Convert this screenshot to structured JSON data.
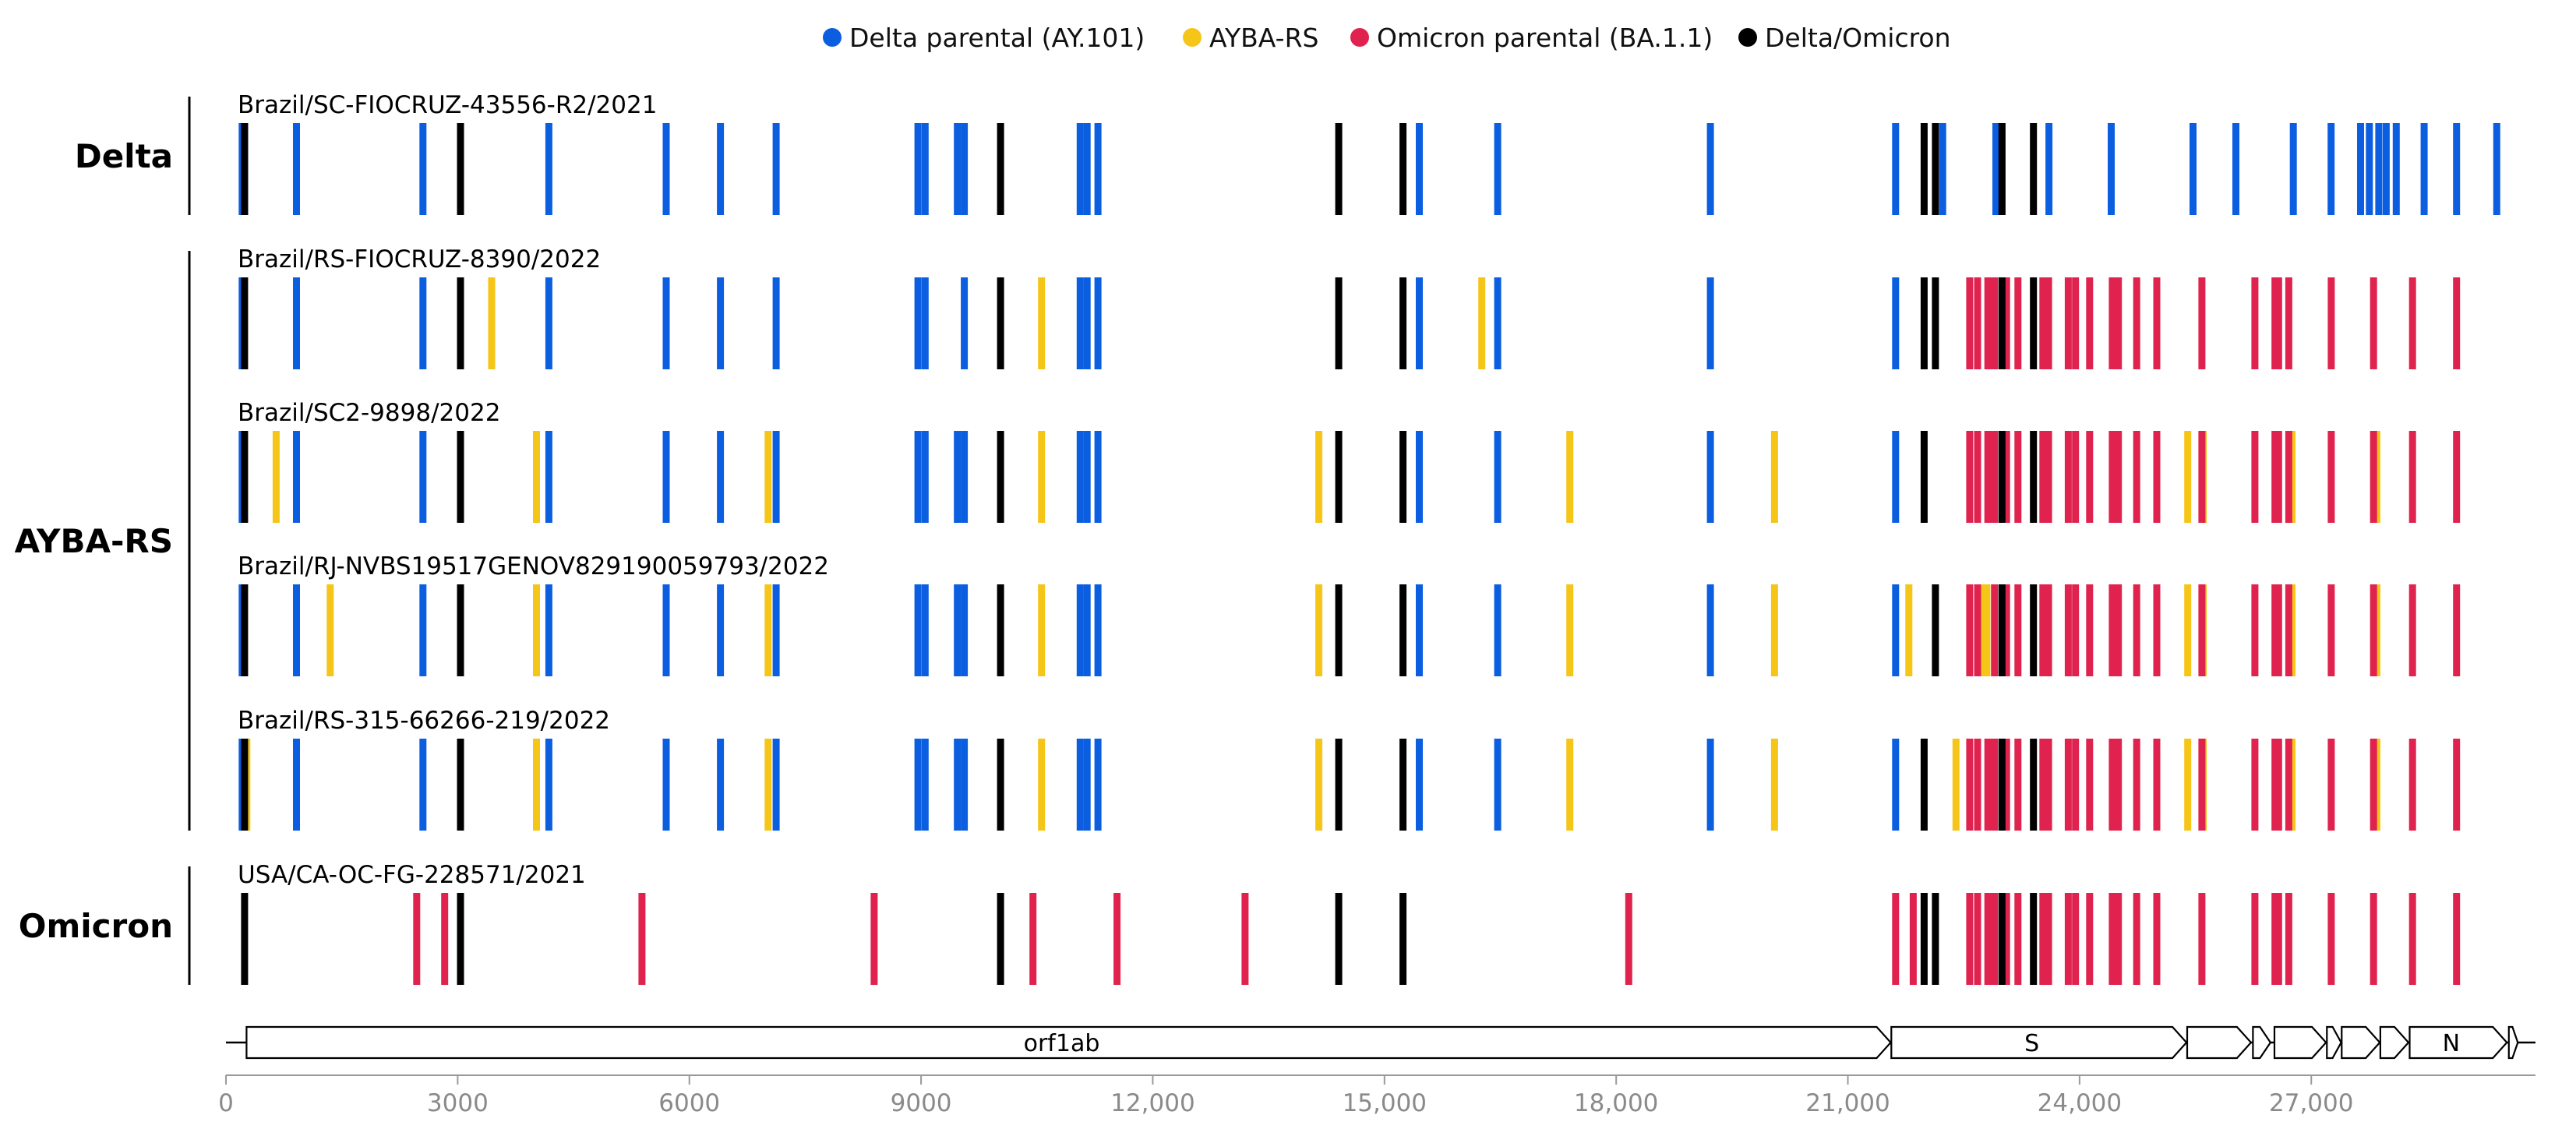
{
  "chart_data": {
    "type": "mutation_map",
    "title": "",
    "xlabel": "",
    "ylabel": "",
    "xlim": [
      0,
      29903
    ],
    "xticks": [
      0,
      3000,
      6000,
      9000,
      12000,
      15000,
      18000,
      21000,
      24000,
      27000
    ],
    "xtick_labels": [
      "0",
      "3000",
      "6000",
      "9000",
      "12,000",
      "15,000",
      "18,000",
      "21,000",
      "24,000",
      "27,000"
    ],
    "legend": {
      "placement": "top-center",
      "entries": [
        {
          "key": "delta",
          "label": "Delta parental (AY.101)",
          "color": "#0b5ee0"
        },
        {
          "key": "ayba",
          "label": "AYBA-RS",
          "color": "#f5c518"
        },
        {
          "key": "omicron",
          "label": "Omicron parental (BA.1.1)",
          "color": "#e0234e"
        },
        {
          "key": "both",
          "label": "Delta/Omicron",
          "color": "#000000"
        }
      ]
    },
    "groups": [
      {
        "label": "Delta",
        "tracks": [
          0
        ]
      },
      {
        "label": "AYBA-RS",
        "tracks": [
          1,
          2,
          3,
          4
        ]
      },
      {
        "label": "Omicron",
        "tracks": [
          5
        ]
      }
    ],
    "tracks": [
      {
        "name": "Brazil/SC-FIOCRUZ-43556-R2/2021",
        "mutations": {
          "delta": [
            210,
            241,
            913,
            2550,
            4181,
            5700,
            6402,
            7124,
            8960,
            9053,
            9470,
            9560,
            11060,
            11150,
            11290,
            15451,
            16466,
            19220,
            21618,
            22227,
            22917,
            22995,
            23604,
            24410,
            25469,
            26024,
            26767,
            27257,
            27638,
            27752,
            27874,
            27970,
            28100,
            28461,
            28881,
            29402
          ],
          "ayba": [],
          "omicron": [],
          "both": [
            241,
            3037,
            10029,
            14408,
            15240,
            21987,
            22134,
            22995,
            23403
          ]
        }
      },
      {
        "name": "Brazil/RS-FIOCRUZ-8390/2022",
        "mutations": {
          "delta": [
            210,
            913,
            2550,
            4181,
            5700,
            6402,
            7124,
            8960,
            9053,
            9560,
            11060,
            11150,
            11290,
            15451,
            16466,
            19220,
            21618
          ],
          "ayba": [
            3440,
            10560,
            16260
          ],
          "omicron": [
            22578,
            22679,
            22813,
            22898,
            23055,
            23202,
            23525,
            23599,
            23854,
            23948,
            24130,
            24424,
            24503,
            24740,
            25000,
            25584,
            26270,
            26530,
            26577,
            26709,
            27259,
            27807,
            28311,
            28881
          ],
          "both": [
            241,
            3037,
            10029,
            14408,
            15240,
            21987,
            22134,
            22995,
            23403
          ]
        }
      },
      {
        "name": "Brazil/SC2-9898/2022",
        "mutations": {
          "delta": [
            210,
            913,
            2550,
            4181,
            5700,
            6402,
            7124,
            8960,
            9053,
            9470,
            9560,
            11060,
            11150,
            11290,
            15451,
            16466,
            19220,
            21618
          ],
          "ayba": [
            650,
            4020,
            7020,
            10560,
            14150,
            17400,
            20050,
            25400,
            25600,
            26750,
            27850
          ],
          "omicron": [
            22578,
            22679,
            22813,
            22898,
            23055,
            23202,
            23525,
            23599,
            23854,
            23948,
            24130,
            24424,
            24503,
            24740,
            25000,
            25584,
            26270,
            26530,
            26577,
            26709,
            27259,
            27807,
            28311,
            28881
          ],
          "both": [
            241,
            3037,
            10029,
            14408,
            15240,
            21987,
            22995,
            23403
          ]
        }
      },
      {
        "name": "Brazil/RJ-NVBS19517GENOV829190059793/2022",
        "mutations": {
          "delta": [
            210,
            913,
            2550,
            4181,
            5700,
            6402,
            7124,
            8960,
            9053,
            9470,
            9560,
            11060,
            11150,
            11290,
            15451,
            16466,
            19220,
            21618
          ],
          "ayba": [
            1350,
            4020,
            7020,
            10560,
            14150,
            17400,
            20050,
            21790,
            22730,
            22800,
            25400,
            25600,
            26750,
            27850
          ],
          "omicron": [
            22578,
            22679,
            22898,
            23055,
            23202,
            23525,
            23599,
            23854,
            23948,
            24130,
            24424,
            24503,
            24740,
            25000,
            25584,
            26270,
            26530,
            26577,
            26709,
            27259,
            27807,
            28311,
            28881
          ],
          "both": [
            241,
            3037,
            10029,
            14408,
            15240,
            22134,
            22995,
            23403
          ]
        }
      },
      {
        "name": "Brazil/RS-315-66266-219/2022",
        "mutations": {
          "delta": [
            210,
            913,
            2550,
            4181,
            5700,
            6402,
            7124,
            8960,
            9053,
            9470,
            9560,
            11060,
            11150,
            11290,
            15451,
            16466,
            19220,
            21618
          ],
          "ayba": [
            270,
            4020,
            7020,
            10560,
            14150,
            17400,
            20050,
            22400,
            25400,
            25600,
            26750,
            27850
          ],
          "omicron": [
            22578,
            22679,
            22813,
            22898,
            23055,
            23202,
            23525,
            23599,
            23854,
            23948,
            24130,
            24424,
            24503,
            24740,
            25000,
            25584,
            26270,
            26530,
            26577,
            26709,
            27259,
            27807,
            28311,
            28881
          ],
          "both": [
            241,
            3037,
            10029,
            14408,
            15240,
            21987,
            22995,
            23403
          ]
        }
      },
      {
        "name": "USA/CA-OC-FG-228571/2021",
        "mutations": {
          "delta": [],
          "ayba": [],
          "omicron": [
            2470,
            2832,
            5386,
            8393,
            10449,
            11537,
            13195,
            18163,
            21618,
            21846,
            22578,
            22679,
            22813,
            22898,
            23055,
            23202,
            23525,
            23599,
            23854,
            23948,
            24130,
            24424,
            24503,
            24740,
            25000,
            25584,
            26270,
            26530,
            26577,
            26709,
            27259,
            27807,
            28311,
            28881
          ],
          "both": [
            241,
            3037,
            10029,
            14408,
            15240,
            21987,
            22134,
            22995,
            23403
          ]
        }
      }
    ],
    "genes": [
      {
        "name": "orf1ab",
        "start": 266,
        "end": 21555
      },
      {
        "name": "S",
        "start": 21563,
        "end": 25384
      },
      {
        "name": "",
        "start": 25393,
        "end": 26220
      },
      {
        "name": "",
        "start": 26245,
        "end": 26472
      },
      {
        "name": "",
        "start": 26523,
        "end": 27191
      },
      {
        "name": "",
        "start": 27202,
        "end": 27387
      },
      {
        "name": "",
        "start": 27394,
        "end": 27887
      },
      {
        "name": "",
        "start": 27894,
        "end": 28259
      },
      {
        "name": "N",
        "start": 28274,
        "end": 29533
      },
      {
        "name": "",
        "start": 29558,
        "end": 29674
      }
    ]
  }
}
